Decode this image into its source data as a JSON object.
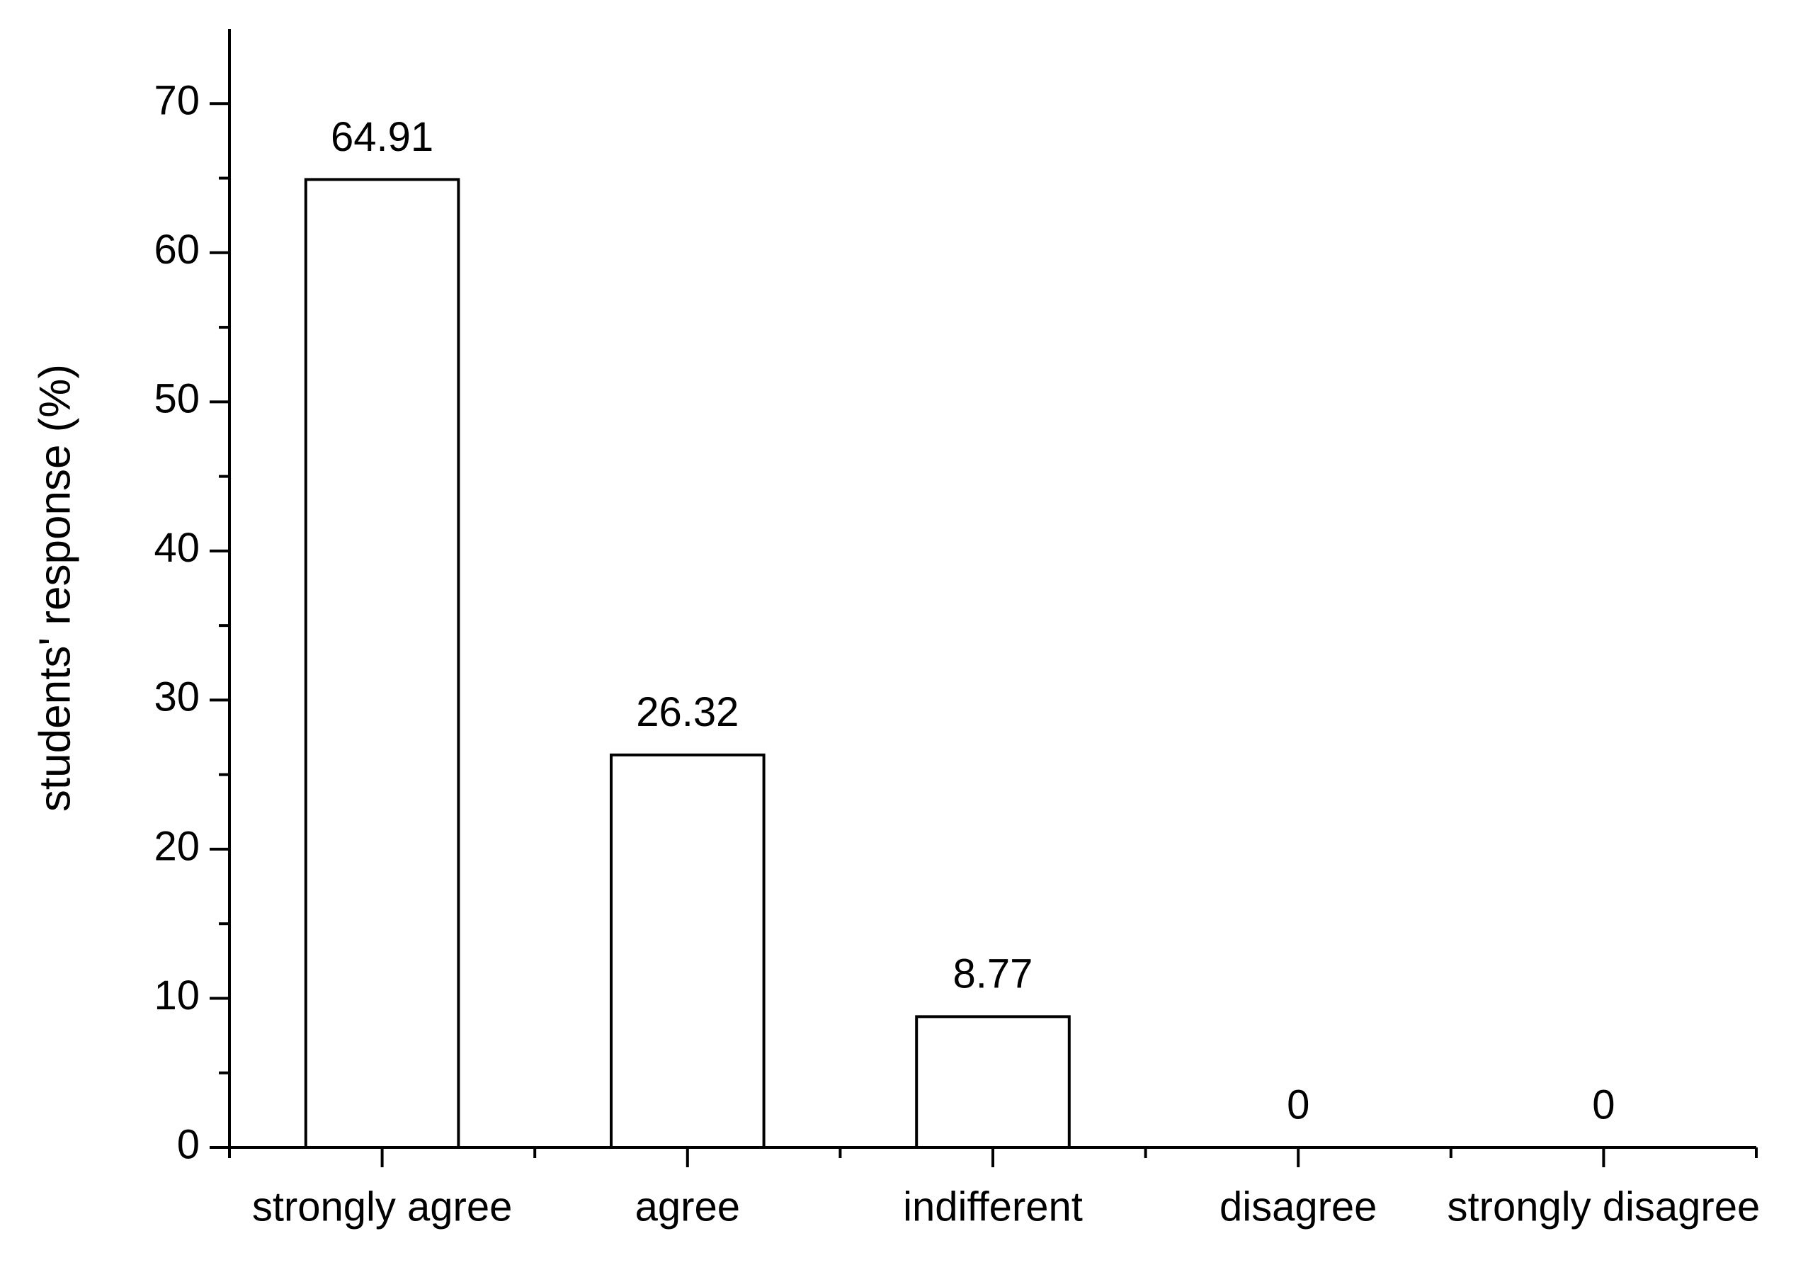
{
  "chart_data": {
    "type": "bar",
    "y_label": "students' response (%)",
    "categories": [
      "strongly agree",
      "agree",
      "indifferent",
      "disagree",
      "strongly disagree"
    ],
    "values": [
      64.91,
      26.32,
      8.77,
      0,
      0
    ],
    "color": "#ffffff",
    "edge_color": "#000000",
    "ylim": [
      0,
      75
    ],
    "yticks": [
      0,
      10,
      20,
      30,
      40,
      50,
      60,
      70
    ],
    "grid": false
  }
}
